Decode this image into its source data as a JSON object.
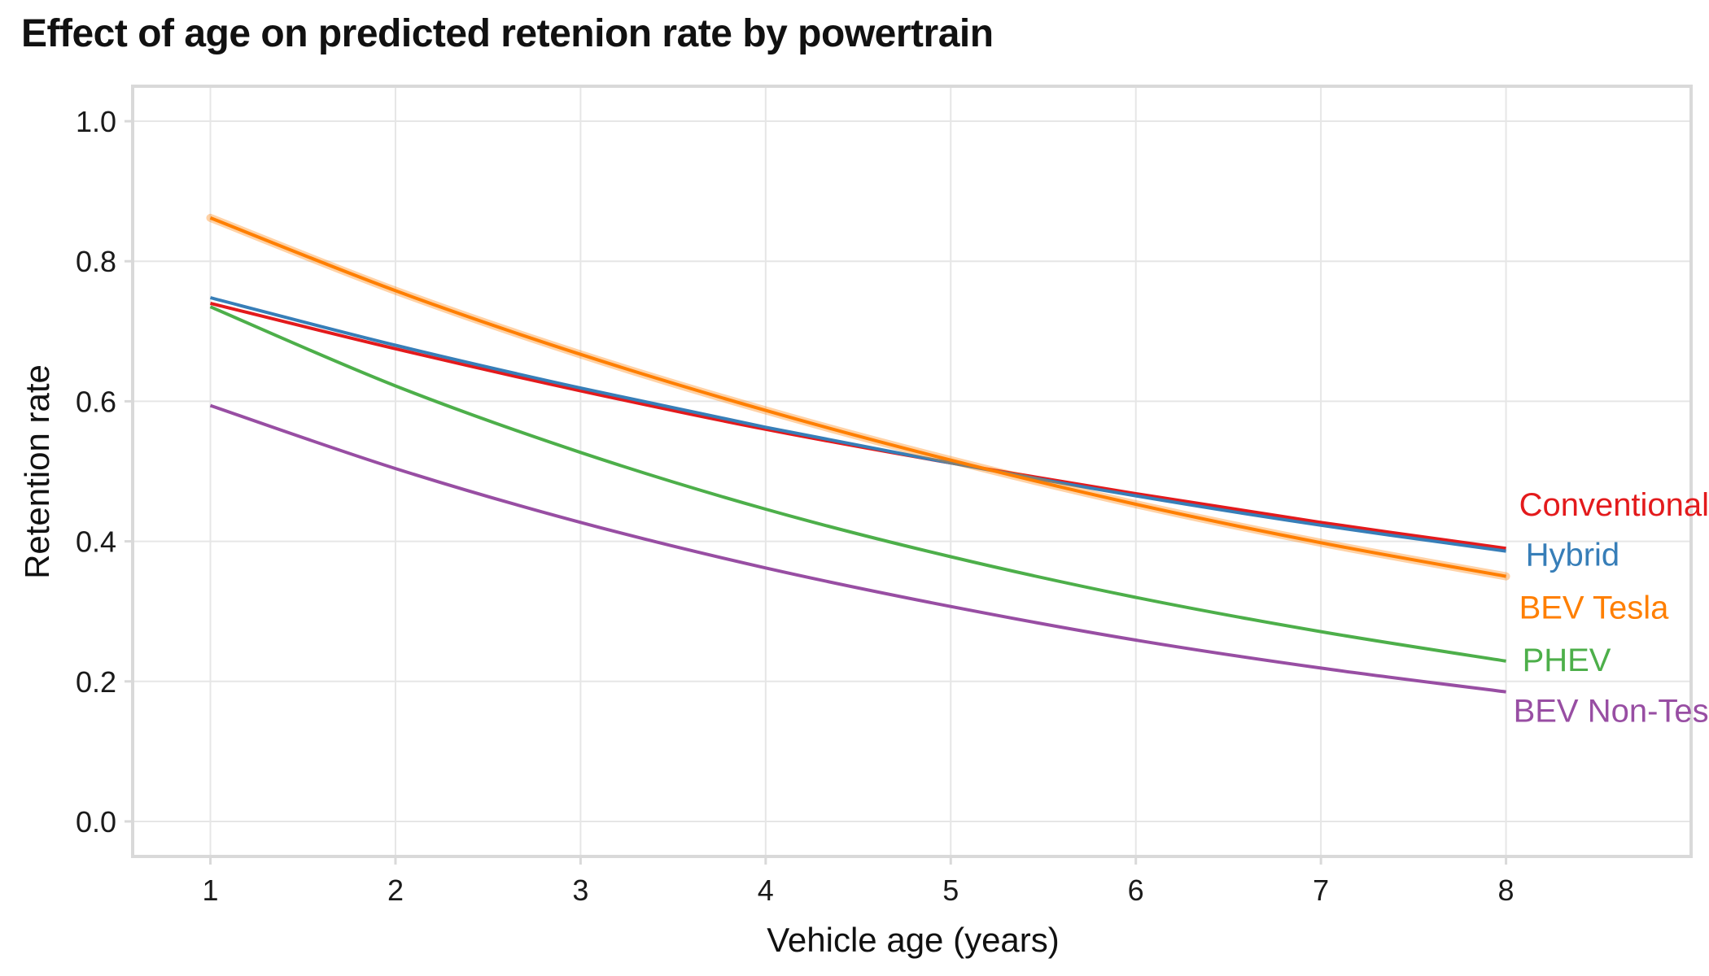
{
  "chart_data": {
    "type": "line",
    "title": "Effect of age on predicted retenion rate by powertrain",
    "xlabel": "Vehicle age (years)",
    "ylabel": "Retention rate",
    "xlim": [
      0.58,
      9.0
    ],
    "ylim": [
      -0.05,
      1.05
    ],
    "x_ticks": [
      1,
      2,
      3,
      4,
      5,
      6,
      7,
      8
    ],
    "y_ticks": [
      0.0,
      0.2,
      0.4,
      0.6,
      0.8,
      1.0
    ],
    "y_tick_labels": [
      "0.0",
      "0.2",
      "0.4",
      "0.6",
      "0.8",
      "1.0"
    ],
    "grid": true,
    "legend": "direct labels at line ends",
    "x": [
      1,
      2,
      3,
      4,
      5,
      6,
      7,
      8
    ],
    "series": [
      {
        "name": "Conventional",
        "color": "#e31a1c",
        "values": [
          0.74,
          0.675,
          0.615,
          0.56,
          0.512,
          0.468,
          0.427,
          0.39
        ]
      },
      {
        "name": "Hybrid",
        "color": "#377eb8",
        "values": [
          0.748,
          0.68,
          0.619,
          0.563,
          0.512,
          0.465,
          0.423,
          0.386
        ]
      },
      {
        "name": "BEV Tesla",
        "color": "#ff7f00",
        "values": [
          0.862,
          0.758,
          0.667,
          0.587,
          0.516,
          0.453,
          0.398,
          0.35
        ]
      },
      {
        "name": "PHEV",
        "color": "#4daf4a",
        "values": [
          0.735,
          0.622,
          0.527,
          0.446,
          0.378,
          0.32,
          0.271,
          0.229
        ]
      },
      {
        "name": "BEV Non-Tesla",
        "color": "#984ea3",
        "values": [
          0.594,
          0.504,
          0.427,
          0.362,
          0.307,
          0.259,
          0.219,
          0.185
        ]
      }
    ]
  }
}
